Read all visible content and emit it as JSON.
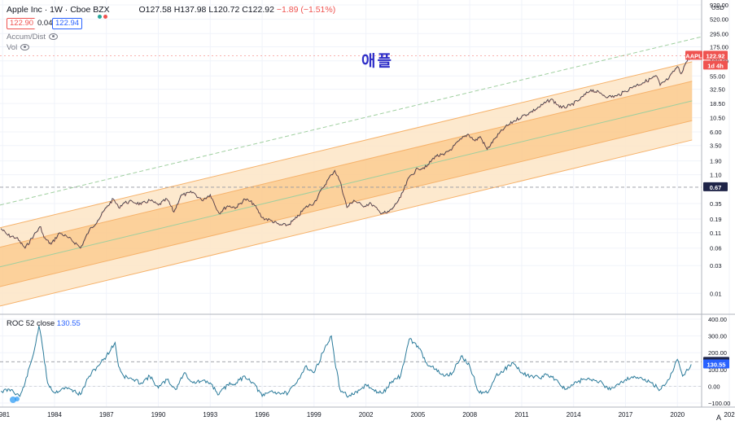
{
  "header": {
    "symbol": "Apple Inc · 1W · Cboe BZX",
    "o": "O127.58",
    "h": "H137.98",
    "l": "L120.72",
    "c": "C122.92",
    "chg": "−1.89 (−1.51%)",
    "bid": "122.90",
    "spread": "0.04",
    "ask": "122.94",
    "indicator1": "Accum/Dist",
    "indicator2": "Vol"
  },
  "title_overlay": "애플",
  "price_axis": {
    "ticks": [
      "920.00",
      "520.00",
      "295.00",
      "175.00",
      "100.00",
      "55.00",
      "32.50",
      "18.50",
      "10.50",
      "6.00",
      "3.50",
      "1.90",
      "1.10",
      "0.35",
      "0.19",
      "0.11",
      "0.06",
      "0.03",
      "0.01"
    ],
    "currency": "USD",
    "last_tag": "AAPL",
    "last_price": "122.92",
    "timer": "1d 4h",
    "crosshair_price": "0.67"
  },
  "roc_axis": {
    "label": "ROC 52 close",
    "value": "130.55",
    "ticks": [
      "400.00",
      "300.00",
      "200.00",
      "100.00",
      "0.00",
      "−100.00"
    ],
    "crosshair_value": "146.02",
    "last_value": "130.55"
  },
  "time_axis": {
    "labels": [
      "1981",
      "1984",
      "1987",
      "1990",
      "1993",
      "1996",
      "1999",
      "2002",
      "2005",
      "2008",
      "2011",
      "2014",
      "2017",
      "2020",
      "202"
    ],
    "corner": "A"
  },
  "colors": {
    "price_line": "#3a3f4b",
    "channel_inner": "#fbc98a",
    "channel_outer": "#fde5c6",
    "median": "#9fcf9f",
    "roc_line": "#2a7a9a",
    "last_tag": "#ef5350",
    "crosshair_tag": "#1e2448",
    "roc_tag": "#2962ff"
  },
  "chart_data": [
    {
      "type": "line",
      "scale": "log",
      "series": [
        {
          "x": [
            1980.9,
            1981.3,
            1981.8,
            1982.3,
            1982.8,
            1983.2,
            1983.4,
            1983.8,
            1984.3,
            1984.8,
            1985.3,
            1985.5,
            1986.0,
            1986.5,
            1987.0,
            1987.4,
            1987.7,
            1988.0,
            1988.5,
            1989.0,
            1989.5,
            1990.0,
            1990.5,
            1990.9,
            1991.3,
            1992.0,
            1992.5,
            1993.0,
            1993.5,
            1994.0,
            1994.5,
            1995.0,
            1995.5,
            1996.0,
            1996.5,
            1997.0,
            1997.5,
            1998.0,
            1998.5,
            1999.0,
            1999.5,
            2000.0,
            2000.2,
            2000.5,
            2000.9,
            2001.3,
            2001.8,
            2002.3,
            2002.8,
            2003.2,
            2003.5,
            2004.0,
            2004.5,
            2005.0,
            2005.5,
            2006.0,
            2006.5,
            2007.0,
            2007.5,
            2007.9,
            2008.3,
            2008.6,
            2009.0,
            2009.5,
            2010.0,
            2010.5,
            2011.0,
            2011.5,
            2012.0,
            2012.7,
            2013.3,
            2013.8,
            2014.3,
            2015.0,
            2015.5,
            2016.0,
            2016.5,
            2017.0,
            2017.5,
            2018.0,
            2018.8,
            2019.0,
            2019.5,
            2020.0,
            2020.2,
            2020.5,
            2020.8
          ],
          "y": [
            0.13,
            0.1,
            0.09,
            0.06,
            0.1,
            0.14,
            0.09,
            0.07,
            0.11,
            0.09,
            0.07,
            0.06,
            0.12,
            0.18,
            0.3,
            0.42,
            0.3,
            0.36,
            0.38,
            0.34,
            0.4,
            0.33,
            0.42,
            0.25,
            0.48,
            0.55,
            0.4,
            0.5,
            0.24,
            0.32,
            0.3,
            0.42,
            0.35,
            0.2,
            0.18,
            0.15,
            0.15,
            0.2,
            0.3,
            0.36,
            0.65,
            1.1,
            1.3,
            0.85,
            0.3,
            0.4,
            0.32,
            0.35,
            0.25,
            0.24,
            0.28,
            0.45,
            1.0,
            1.4,
            1.5,
            2.3,
            2.4,
            3.2,
            4.5,
            5.5,
            4.2,
            5.0,
            3.0,
            4.8,
            7.0,
            9.0,
            11.0,
            13.0,
            16.0,
            22.0,
            15.5,
            17.0,
            21.0,
            32.0,
            28.0,
            24.0,
            25.0,
            30.0,
            37.0,
            42.0,
            55.0,
            38.0,
            50.0,
            80.0,
            60.0,
            95.0,
            122.92
          ]
        }
      ]
    },
    {
      "type": "line",
      "title": "ROC 52 close",
      "series": [
        {
          "x": [
            1980.9,
            1981.5,
            1982.0,
            1982.3,
            1982.8,
            1983.1,
            1983.3,
            1983.6,
            1984.0,
            1984.5,
            1985.0,
            1985.5,
            1986.0,
            1986.5,
            1987.0,
            1987.5,
            1987.7,
            1988.0,
            1988.5,
            1989.0,
            1989.5,
            1990.0,
            1990.5,
            1991.0,
            1991.5,
            1992.0,
            1992.5,
            1993.0,
            1993.5,
            1994.0,
            1994.5,
            1995.0,
            1995.5,
            1996.0,
            1996.5,
            1997.0,
            1997.5,
            1998.0,
            1998.5,
            1999.0,
            1999.5,
            2000.0,
            2000.2,
            2000.5,
            2001.0,
            2001.5,
            2002.0,
            2002.5,
            2003.0,
            2003.5,
            2004.0,
            2004.5,
            2005.0,
            2005.5,
            2006.0,
            2006.5,
            2007.0,
            2007.5,
            2008.0,
            2008.5,
            2009.0,
            2009.5,
            2010.0,
            2010.5,
            2011.0,
            2011.5,
            2012.0,
            2012.5,
            2013.0,
            2013.5,
            2014.0,
            2014.5,
            2015.0,
            2015.5,
            2016.0,
            2016.5,
            2017.0,
            2017.5,
            2018.0,
            2018.5,
            2019.0,
            2019.5,
            2020.0,
            2020.3,
            2020.8
          ],
          "y": [
            -30,
            -20,
            -60,
            20,
            200,
            360,
            240,
            20,
            -40,
            -10,
            -20,
            -50,
            60,
            120,
            180,
            260,
            120,
            60,
            40,
            20,
            60,
            -10,
            40,
            -20,
            80,
            20,
            30,
            20,
            -50,
            10,
            20,
            60,
            20,
            -60,
            -30,
            -40,
            -40,
            20,
            120,
            80,
            200,
            300,
            150,
            -20,
            -60,
            -40,
            10,
            -30,
            -40,
            30,
            60,
            280,
            240,
            140,
            100,
            60,
            80,
            180,
            120,
            -30,
            -40,
            60,
            100,
            140,
            80,
            60,
            50,
            70,
            40,
            -20,
            10,
            40,
            40,
            30,
            -20,
            10,
            40,
            60,
            40,
            20,
            -20,
            40,
            160,
            60,
            130.55
          ]
        }
      ],
      "ylim": [
        -100,
        400
      ]
    }
  ]
}
